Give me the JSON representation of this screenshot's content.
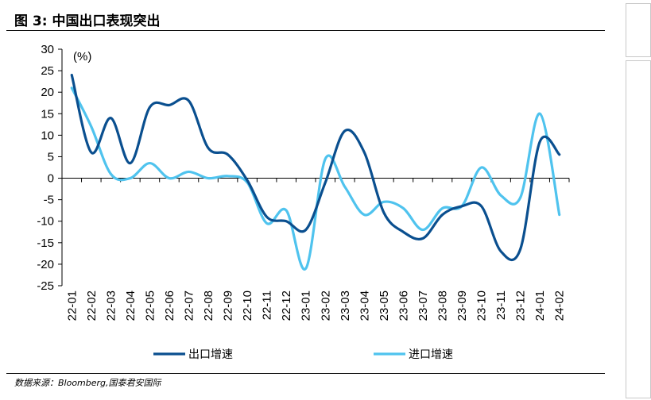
{
  "figure": {
    "title": "图 3:  中国出口表现突出",
    "source": "数据来源：Bloomberg,国泰君安国际"
  },
  "chart_data": {
    "type": "line",
    "title": "中国出口表现突出",
    "unit_label": "(%)",
    "xlabel": "",
    "ylabel": "",
    "ylim": [
      -25,
      30
    ],
    "yticks": [
      30,
      25,
      20,
      15,
      10,
      5,
      0,
      -5,
      -10,
      -15,
      -20,
      -25
    ],
    "categories": [
      "22-01",
      "22-02",
      "22-03",
      "22-04",
      "22-05",
      "22-06",
      "22-07",
      "22-08",
      "22-09",
      "22-10",
      "22-11",
      "22-12",
      "23-01",
      "23-02",
      "23-03",
      "23-04",
      "23-05",
      "23-06",
      "23-07",
      "23-08",
      "23-09",
      "23-10",
      "23-11",
      "23-12",
      "24-01",
      "24-02"
    ],
    "legend_position": "bottom",
    "grid": false,
    "series": [
      {
        "name": "出口增速",
        "color": "#0a4f8f",
        "values": [
          24,
          6,
          14,
          3.5,
          16.5,
          17,
          18,
          7,
          5.5,
          -0.5,
          -9,
          -10,
          -12,
          -1,
          11,
          6,
          -8,
          -12.5,
          -14,
          -8.5,
          -6.5,
          -6.5,
          -17,
          -16.5,
          8.5,
          5.5
        ]
      },
      {
        "name": "进口增速",
        "color": "#4fc3ee",
        "values": [
          21,
          12,
          1,
          0,
          3.5,
          0,
          1.5,
          0,
          0.5,
          -1,
          -10.5,
          -7.5,
          -21,
          4.5,
          -2,
          -8.5,
          -5.5,
          -7,
          -12,
          -7,
          -6.5,
          2.5,
          -4,
          -4.5,
          15,
          -8.5
        ]
      }
    ]
  }
}
